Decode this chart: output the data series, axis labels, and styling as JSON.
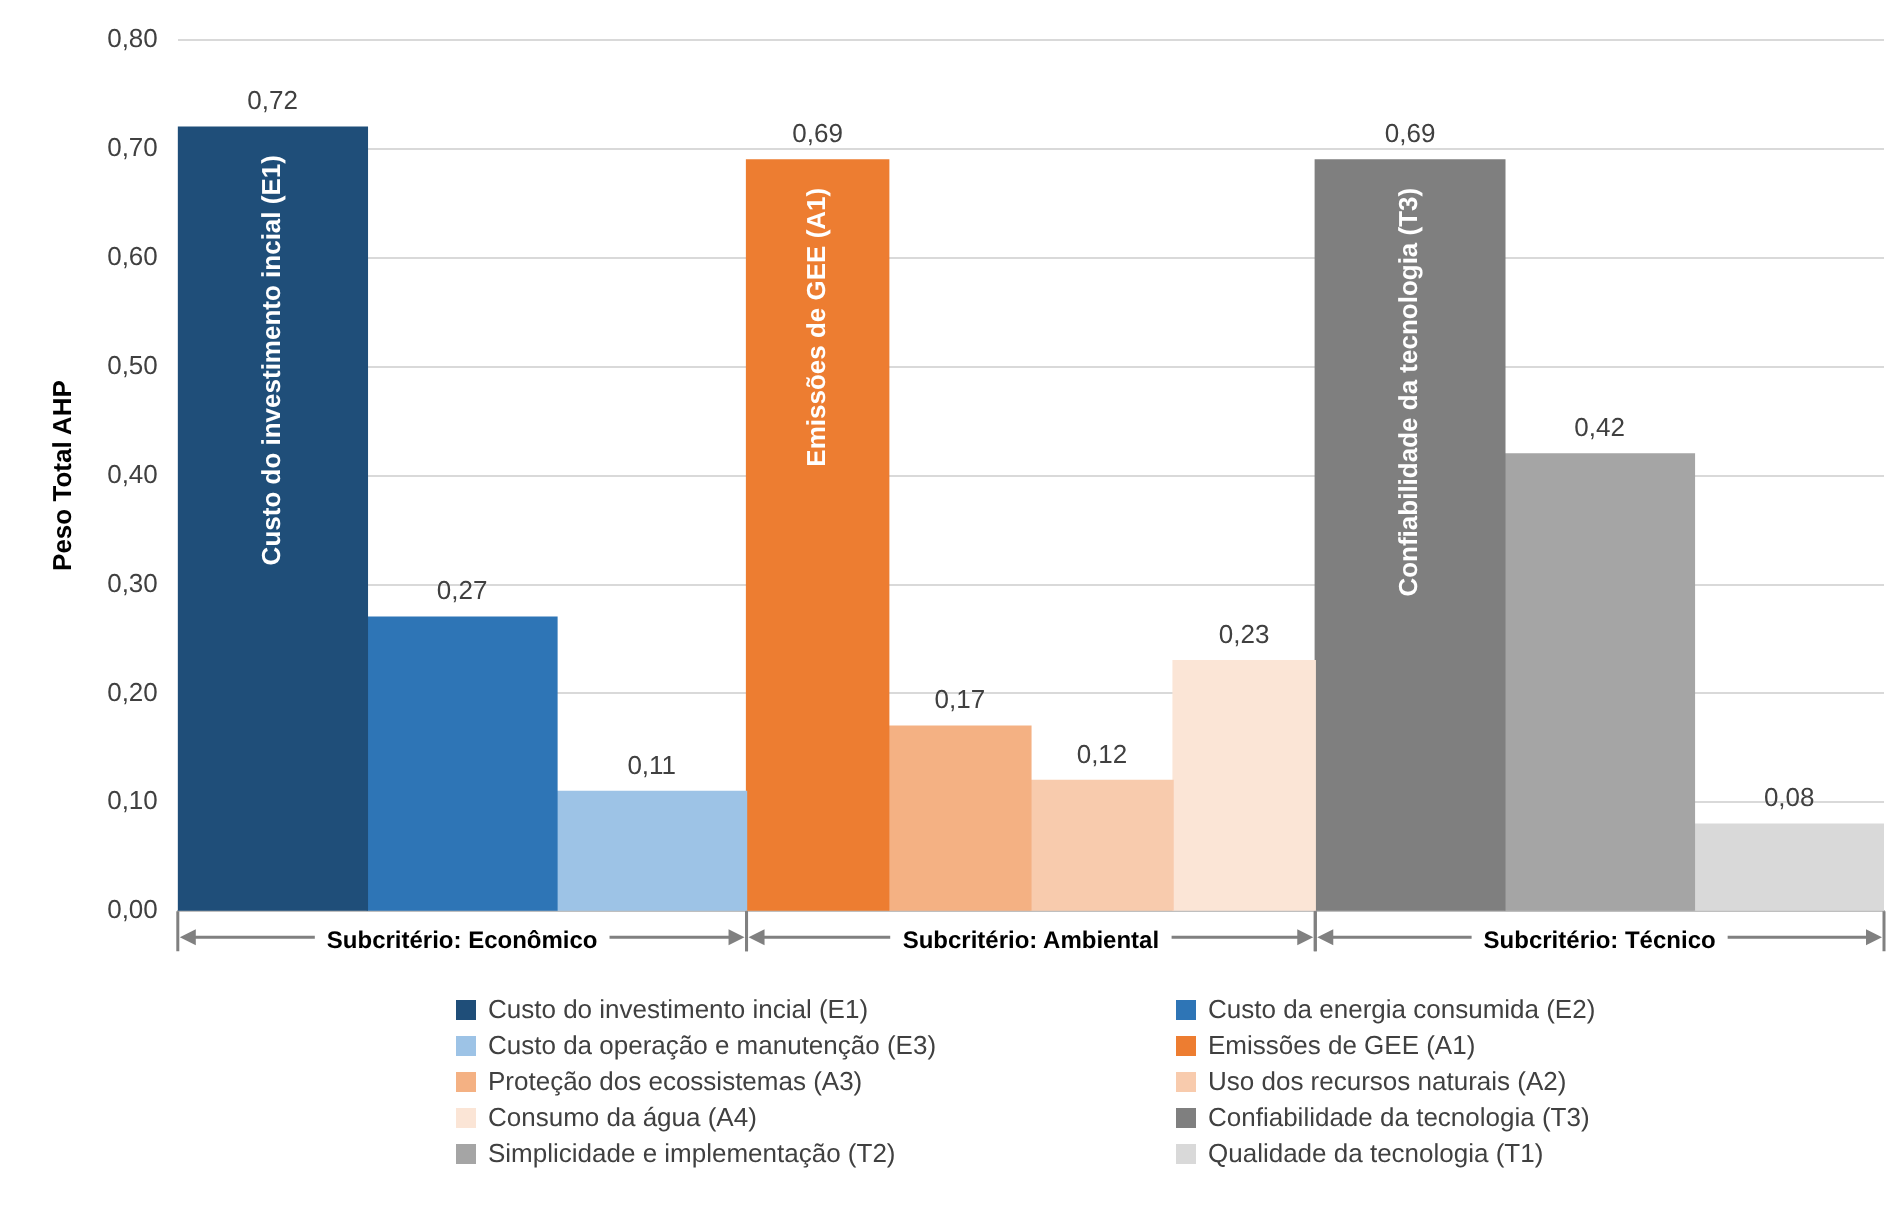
{
  "chart_data": {
    "type": "bar",
    "ylabel": "Peso Total AHP",
    "categories": [
      "Subcritério: Econômico",
      "Subcritério: Ambiental",
      "Subcritério: Técnico"
    ],
    "ylim": [
      0,
      0.8
    ],
    "yticks": [
      {
        "value": 0,
        "label": "0,00"
      },
      {
        "value": 0.1,
        "label": "0,10"
      },
      {
        "value": 0.2,
        "label": "0,20"
      },
      {
        "value": 0.3,
        "label": "0,30"
      },
      {
        "value": 0.4,
        "label": "0,40"
      },
      {
        "value": 0.5,
        "label": "0,50"
      },
      {
        "value": 0.6,
        "label": "0,60"
      },
      {
        "value": 0.7,
        "label": "0,70"
      },
      {
        "value": 0.8,
        "label": "0,80"
      }
    ],
    "grid": "y",
    "legend": "bottom",
    "series": [
      {
        "name": "Custo do investimento incial (E1)",
        "color": "#1f4e79",
        "values": [
          0.72,
          null,
          null
        ],
        "value_labels": [
          "0,72",
          null,
          null
        ]
      },
      {
        "name": "Custo da energia consumida (E2)",
        "color": "#2e75b6",
        "values": [
          0.27,
          null,
          null
        ],
        "value_labels": [
          "0,27",
          null,
          null
        ]
      },
      {
        "name": "Custo da operação e manutenção (E3)",
        "color": "#9dc3e6",
        "values": [
          0.11,
          null,
          null
        ],
        "value_labels": [
          "0,11",
          null,
          null
        ]
      },
      {
        "name": "Emissões de GEE (A1)",
        "color": "#ed7d31",
        "values": [
          null,
          0.69,
          null
        ],
        "value_labels": [
          null,
          "0,69",
          null
        ]
      },
      {
        "name": "Proteção dos ecossistemas (A3)",
        "color": "#f4b183",
        "values": [
          null,
          0.17,
          null
        ],
        "value_labels": [
          null,
          "0,17",
          null
        ]
      },
      {
        "name": "Uso dos recursos naturais (A2)",
        "color": "#f8cbad",
        "values": [
          null,
          0.12,
          null
        ],
        "value_labels": [
          null,
          "0,12",
          null
        ]
      },
      {
        "name": "Consumo da água (A4)",
        "color": "#fbe5d6",
        "values": [
          null,
          0.23,
          null
        ],
        "value_labels": [
          null,
          "0,23",
          null
        ]
      },
      {
        "name": "Confiabilidade da tecnologia (T3)",
        "color": "#7f7f7f",
        "values": [
          null,
          null,
          0.69
        ],
        "value_labels": [
          null,
          null,
          "0,69"
        ]
      },
      {
        "name": "Simplicidade e implementação (T2)",
        "color": "#a5a5a5",
        "values": [
          null,
          null,
          0.42
        ],
        "value_labels": [
          null,
          null,
          "0,42"
        ]
      },
      {
        "name": "Qualidade da tecnologia (T1)",
        "color": "#d9d9d9",
        "values": [
          null,
          null,
          0.08
        ],
        "value_labels": [
          null,
          null,
          "0,08"
        ]
      }
    ],
    "annotations": [
      "Custo do investimento incial (E1)",
      "Emissões de GEE (A1)",
      "Confiabilidade da tecnologia (T3)"
    ]
  }
}
